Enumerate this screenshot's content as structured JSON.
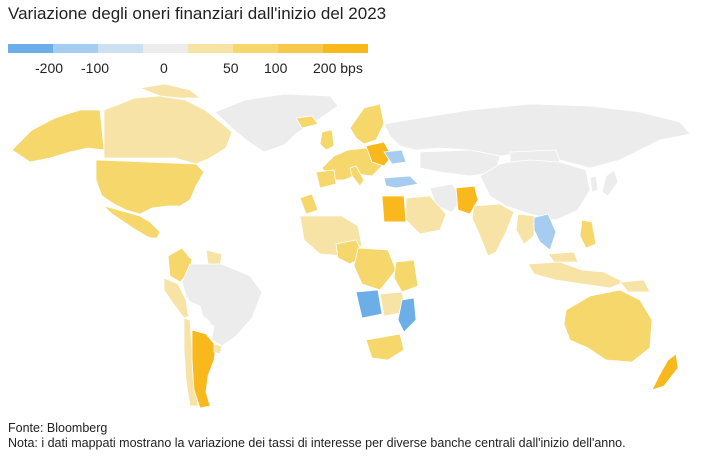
{
  "title": "Variazione degli oneri finanziari dall'inizio del 2023",
  "legend": {
    "swatches": [
      {
        "color": "#6baee8"
      },
      {
        "color": "#a6cdf0"
      },
      {
        "color": "#cde0f1"
      },
      {
        "color": "#ececec"
      },
      {
        "color": "#f7e3a6"
      },
      {
        "color": "#f5d76b"
      },
      {
        "color": "#f6c94a"
      },
      {
        "color": "#f9b81b"
      }
    ],
    "labels": [
      {
        "text": "-200"
      },
      {
        "text": "-100"
      },
      {
        "text": "0"
      },
      {
        "text": "50"
      },
      {
        "text": "100"
      },
      {
        "text": "200 bps"
      }
    ]
  },
  "colors": {
    "no_data": "#ececec",
    "neg_strong": "#6baee8",
    "neg_light": "#a6cdf0",
    "pos_light": "#f7e3a6",
    "pos_mid": "#f5d76b",
    "pos_strong": "#f9b81b",
    "white_land": "#ffffff"
  },
  "footer": {
    "source": "Fonte: Bloomberg",
    "note": "Nota: i dati mappati mostrano la variazione dei tassi di interesse per diverse banche centrali dall'inizio dell'anno."
  }
}
